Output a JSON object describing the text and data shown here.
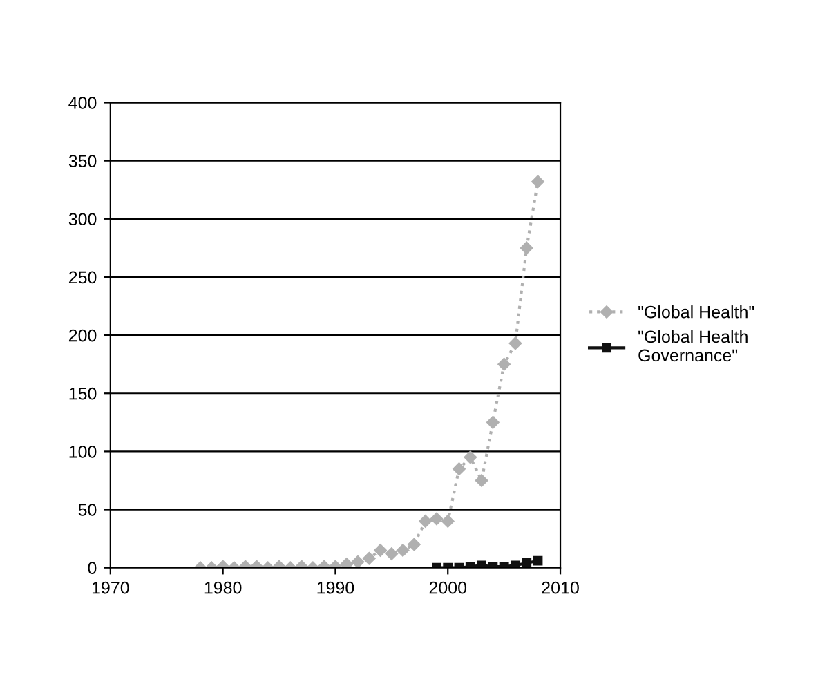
{
  "chart_data": {
    "type": "line",
    "xlim": [
      1970,
      2010
    ],
    "xticks": [
      1970,
      1980,
      1990,
      2000,
      2010
    ],
    "ylim": [
      0,
      400
    ],
    "yticks": [
      0,
      50,
      100,
      150,
      200,
      250,
      300,
      350,
      400
    ],
    "grid": "y",
    "legend": "right",
    "series": [
      {
        "name": "\"Global Health\"",
        "color": "#b0b0b0",
        "marker": "diamond",
        "line_style": "dotted",
        "x": [
          1978,
          1979,
          1980,
          1981,
          1982,
          1983,
          1984,
          1985,
          1986,
          1987,
          1988,
          1989,
          1990,
          1991,
          1992,
          1993,
          1994,
          1995,
          1996,
          1997,
          1998,
          1999,
          2000,
          2001,
          2002,
          2003,
          2004,
          2005,
          2006,
          2007,
          2008
        ],
        "values": [
          0,
          0,
          1,
          0,
          1,
          1,
          0,
          1,
          0,
          1,
          0,
          1,
          1,
          3,
          5,
          8,
          15,
          12,
          15,
          20,
          40,
          42,
          40,
          85,
          95,
          75,
          125,
          175,
          193,
          275,
          332
        ]
      },
      {
        "name": "\"Global Health Governance\"",
        "color": "#111111",
        "marker": "square",
        "line_style": "solid",
        "x": [
          1999,
          2000,
          2001,
          2002,
          2003,
          2004,
          2005,
          2006,
          2007,
          2008
        ],
        "values": [
          0,
          0,
          0,
          1,
          2,
          1,
          1,
          2,
          4,
          6
        ]
      }
    ]
  }
}
